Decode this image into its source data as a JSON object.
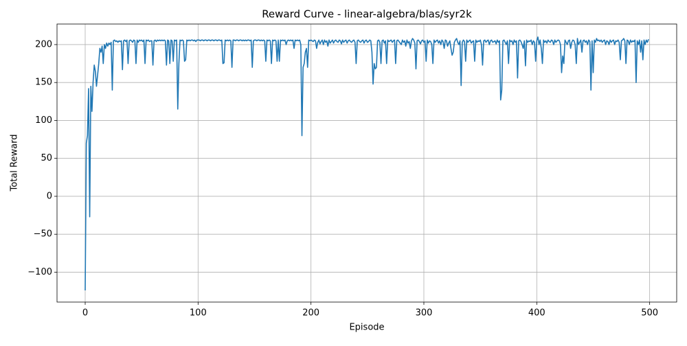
{
  "chart_data": {
    "type": "line",
    "title": "Reward Curve - linear-algebra/blas/syr2k",
    "xlabel": "Episode",
    "ylabel": "Total Reward",
    "grid": true,
    "xlim": [
      -24.95,
      523.95
    ],
    "ylim": [
      -139.4,
      227.1
    ],
    "xticks": [
      0,
      100,
      200,
      300,
      400,
      500
    ],
    "yticks": [
      {
        "value": -100,
        "label": "−100"
      },
      {
        "value": -50,
        "label": "−50"
      },
      0,
      50,
      100,
      150,
      200
    ],
    "x": [
      0,
      1,
      2,
      3,
      4,
      5,
      6,
      7,
      8,
      9,
      10,
      11,
      12,
      13,
      14,
      15,
      16,
      17,
      18,
      19,
      20,
      21,
      22,
      23,
      24,
      25,
      26,
      27,
      28,
      29,
      30,
      31,
      32,
      33,
      34,
      35,
      36,
      37,
      38,
      39,
      40,
      41,
      42,
      43,
      44,
      45,
      46,
      47,
      48,
      49,
      50,
      51,
      52,
      53,
      54,
      55,
      56,
      57,
      58,
      59,
      60,
      61,
      62,
      63,
      64,
      65,
      66,
      67,
      68,
      69,
      70,
      71,
      72,
      73,
      74,
      75,
      76,
      77,
      78,
      79,
      80,
      81,
      82,
      83,
      84,
      85,
      86,
      87,
      88,
      89,
      90,
      91,
      92,
      93,
      94,
      95,
      96,
      97,
      98,
      99,
      100,
      101,
      102,
      103,
      104,
      105,
      106,
      107,
      108,
      109,
      110,
      111,
      112,
      113,
      114,
      115,
      116,
      117,
      118,
      119,
      120,
      121,
      122,
      123,
      124,
      125,
      126,
      127,
      128,
      129,
      130,
      131,
      132,
      133,
      134,
      135,
      136,
      137,
      138,
      139,
      140,
      141,
      142,
      143,
      144,
      145,
      146,
      147,
      148,
      149,
      150,
      151,
      152,
      153,
      154,
      155,
      156,
      157,
      158,
      159,
      160,
      161,
      162,
      163,
      164,
      165,
      166,
      167,
      168,
      169,
      170,
      171,
      172,
      173,
      174,
      175,
      176,
      177,
      178,
      179,
      180,
      181,
      182,
      183,
      184,
      185,
      186,
      187,
      188,
      189,
      190,
      191,
      192,
      193,
      194,
      195,
      196,
      197,
      198,
      199,
      200,
      201,
      202,
      203,
      204,
      205,
      206,
      207,
      208,
      209,
      210,
      211,
      212,
      213,
      214,
      215,
      216,
      217,
      218,
      219,
      220,
      221,
      222,
      223,
      224,
      225,
      226,
      227,
      228,
      229,
      230,
      231,
      232,
      233,
      234,
      235,
      236,
      237,
      238,
      239,
      240,
      241,
      242,
      243,
      244,
      245,
      246,
      247,
      248,
      249,
      250,
      251,
      252,
      253,
      254,
      255,
      256,
      257,
      258,
      259,
      260,
      261,
      262,
      263,
      264,
      265,
      266,
      267,
      268,
      269,
      270,
      271,
      272,
      273,
      274,
      275,
      276,
      277,
      278,
      279,
      280,
      281,
      282,
      283,
      284,
      285,
      286,
      287,
      288,
      289,
      290,
      291,
      292,
      293,
      294,
      295,
      296,
      297,
      298,
      299,
      300,
      301,
      302,
      303,
      304,
      305,
      306,
      307,
      308,
      309,
      310,
      311,
      312,
      313,
      314,
      315,
      316,
      317,
      318,
      319,
      320,
      321,
      322,
      323,
      324,
      325,
      326,
      327,
      328,
      329,
      330,
      331,
      332,
      333,
      334,
      335,
      336,
      337,
      338,
      339,
      340,
      341,
      342,
      343,
      344,
      345,
      346,
      347,
      348,
      349,
      350,
      351,
      352,
      353,
      354,
      355,
      356,
      357,
      358,
      359,
      360,
      361,
      362,
      363,
      364,
      365,
      366,
      367,
      368,
      369,
      370,
      371,
      372,
      373,
      374,
      375,
      376,
      377,
      378,
      379,
      380,
      381,
      382,
      383,
      384,
      385,
      386,
      387,
      388,
      389,
      390,
      391,
      392,
      393,
      394,
      395,
      396,
      397,
      398,
      399,
      400,
      401,
      402,
      403,
      404,
      405,
      406,
      407,
      408,
      409,
      410,
      411,
      412,
      413,
      414,
      415,
      416,
      417,
      418,
      419,
      420,
      421,
      422,
      423,
      424,
      425,
      426,
      427,
      428,
      429,
      430,
      431,
      432,
      433,
      434,
      435,
      436,
      437,
      438,
      439,
      440,
      441,
      442,
      443,
      444,
      445,
      446,
      447,
      448,
      449,
      450,
      451,
      452,
      453,
      454,
      455,
      456,
      457,
      458,
      459,
      460,
      461,
      462,
      463,
      464,
      465,
      466,
      467,
      468,
      469,
      470,
      471,
      472,
      473,
      474,
      475,
      476,
      477,
      478,
      479,
      480,
      481,
      482,
      483,
      484,
      485,
      486,
      487,
      488,
      489,
      490,
      491,
      492,
      493,
      494,
      495,
      496,
      497,
      498,
      499
    ],
    "series": [
      {
        "color": "#1f77b4",
        "values": [
          -124,
          70,
          80,
          142,
          -27,
          145,
          112,
          150,
          173,
          165,
          145,
          160,
          175,
          195,
          190,
          198,
          175,
          200,
          195,
          202,
          198,
          202,
          200,
          203,
          140,
          205,
          206,
          204,
          205,
          203,
          205,
          204,
          205,
          167,
          205,
          206,
          204,
          206,
          175,
          205,
          206,
          205,
          203,
          206,
          205,
          175,
          206,
          203,
          206,
          205,
          206,
          204,
          206,
          175,
          206,
          205,
          206,
          204,
          205,
          205,
          173,
          205,
          206,
          204,
          206,
          205,
          206,
          205,
          206,
          205,
          206,
          205,
          173,
          206,
          205,
          175,
          206,
          205,
          178,
          206,
          205,
          206,
          115,
          175,
          206,
          205,
          206,
          205,
          178,
          180,
          206,
          205,
          206,
          205,
          206,
          206,
          205,
          206,
          204,
          206,
          206,
          206,
          205,
          206,
          206,
          205,
          206,
          206,
          205,
          206,
          206,
          205,
          206,
          206,
          205,
          206,
          206,
          205,
          206,
          206,
          205,
          206,
          175,
          176,
          206,
          205,
          206,
          205,
          206,
          205,
          170,
          206,
          206,
          205,
          206,
          206,
          205,
          206,
          206,
          205,
          206,
          205,
          206,
          205,
          206,
          206,
          205,
          206,
          170,
          205,
          206,
          206,
          205,
          206,
          206,
          205,
          206,
          205,
          206,
          205,
          178,
          206,
          205,
          206,
          205,
          175,
          206,
          205,
          206,
          205,
          178,
          206,
          178,
          206,
          205,
          206,
          205,
          206,
          200,
          205,
          206,
          205,
          206,
          205,
          206,
          195,
          206,
          205,
          206,
          205,
          206,
          200,
          80,
          170,
          175,
          190,
          195,
          170,
          206,
          205,
          206,
          205,
          204,
          206,
          205,
          195,
          203,
          206,
          201,
          204,
          206,
          200,
          206,
          203,
          205,
          198,
          206,
          202,
          204,
          206,
          202,
          205,
          206,
          204,
          203,
          206,
          205,
          201,
          206,
          203,
          205,
          206,
          202,
          205,
          206,
          204,
          203,
          205,
          206,
          203,
          175,
          205,
          206,
          204,
          203,
          205,
          206,
          202,
          205,
          206,
          203,
          204,
          206,
          205,
          190,
          148,
          175,
          168,
          170,
          205,
          206,
          203,
          175,
          205,
          206,
          202,
          205,
          175,
          206,
          204,
          205,
          206,
          203,
          205,
          206,
          175,
          205,
          206,
          204,
          202,
          200,
          206,
          203,
          205,
          198,
          206,
          202,
          204,
          195,
          205,
          208,
          206,
          202,
          168,
          205,
          206,
          204,
          201,
          205,
          206,
          203,
          205,
          178,
          206,
          202,
          205,
          204,
          200,
          175,
          206,
          203,
          205,
          206,
          202,
          205,
          200,
          206,
          204,
          195,
          206,
          205,
          198,
          202,
          205,
          195,
          186,
          190,
          203,
          206,
          208,
          203,
          200,
          205,
          146,
          203,
          206,
          204,
          178,
          206,
          203,
          205,
          206,
          202,
          204,
          205,
          178,
          206,
          203,
          205,
          204,
          206,
          200,
          173,
          205,
          206,
          203,
          205,
          206,
          200,
          205,
          206,
          203,
          204,
          205,
          201,
          206,
          203,
          205,
          127,
          140,
          205,
          206,
          203,
          200,
          205,
          175,
          206,
          204,
          205,
          200,
          206,
          203,
          205,
          156,
          205,
          206,
          204,
          200,
          195,
          205,
          172,
          206,
          203,
          205,
          204,
          206,
          200,
          205,
          203,
          178,
          205,
          210,
          200,
          206,
          195,
          175,
          206,
          203,
          205,
          202,
          206,
          204,
          203,
          206,
          205,
          200,
          206,
          203,
          205,
          206,
          205,
          200,
          163,
          185,
          175,
          206,
          203,
          200,
          205,
          206,
          195,
          203,
          206,
          205,
          200,
          175,
          208,
          200,
          203,
          206,
          190,
          205,
          206,
          203,
          205,
          200,
          206,
          204,
          140,
          205,
          163,
          206,
          203,
          208,
          205,
          206,
          204,
          206,
          203,
          205,
          206,
          200,
          205,
          204,
          200,
          206,
          203,
          205,
          206,
          200,
          205,
          204,
          206,
          203,
          180,
          205,
          206,
          208,
          205,
          175,
          206,
          205,
          200,
          206,
          203,
          205,
          204,
          206,
          150,
          205,
          200,
          206,
          190,
          205,
          180,
          206,
          200,
          206,
          203,
          207
        ]
      }
    ]
  }
}
